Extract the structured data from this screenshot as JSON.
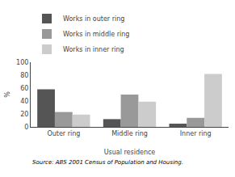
{
  "chart_data": {
    "type": "bar",
    "xlabel": "Usual residence",
    "ylabel": "%",
    "categories": [
      "Outer ring",
      "Middle ring",
      "Inner ring"
    ],
    "series": [
      {
        "name": "Works in outer ring",
        "color": "#555555",
        "values": [
          58,
          12,
          5
        ]
      },
      {
        "name": "Works in middle ring",
        "color": "#999999",
        "values": [
          23,
          50,
          14
        ]
      },
      {
        "name": "Works in inner ring",
        "color": "#cccccc",
        "values": [
          19,
          39,
          82
        ]
      }
    ],
    "ylim": [
      0,
      100
    ],
    "yticks": [
      0,
      20,
      40,
      60,
      80,
      100
    ],
    "grid": false,
    "legend": "upper left",
    "annotations": [
      "Source: ABS 2001 Census of Population and Housing."
    ]
  }
}
